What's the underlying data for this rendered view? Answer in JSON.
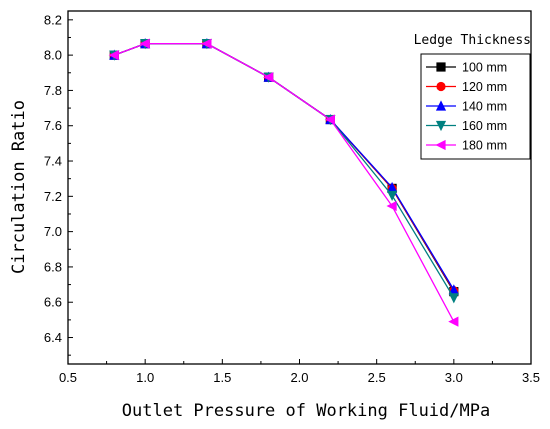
{
  "chart_data": {
    "type": "line",
    "xlabel": "Outlet Pressure of Working Fluid/MPa",
    "ylabel": "Circulation Ratio",
    "xlim": [
      0.5,
      3.5
    ],
    "ylim": [
      6.25,
      8.25
    ],
    "x_ticks": [
      "0.5",
      "1.0",
      "1.5",
      "2.0",
      "2.5",
      "3.0",
      "3.5"
    ],
    "y_ticks": [
      "6.4",
      "6.6",
      "6.8",
      "7.0",
      "7.2",
      "7.4",
      "7.6",
      "7.8",
      "8.0",
      "8.2"
    ],
    "legend_title": "Ledge Thickness",
    "legend_position": "top-right",
    "grid": false,
    "x": [
      0.8,
      1.0,
      1.4,
      1.8,
      2.2,
      2.6,
      3.0
    ],
    "series": [
      {
        "name": "100 mm",
        "color": "#000000",
        "marker": "square",
        "values": [
          8.0,
          8.065,
          8.065,
          7.875,
          7.635,
          7.245,
          6.66
        ]
      },
      {
        "name": "120 mm",
        "color": "#ff0000",
        "marker": "circle",
        "values": [
          8.0,
          8.065,
          8.065,
          7.875,
          7.635,
          7.245,
          6.665
        ]
      },
      {
        "name": "140 mm",
        "color": "#0000ff",
        "marker": "triangle-up",
        "values": [
          8.0,
          8.065,
          8.065,
          7.875,
          7.635,
          7.25,
          6.67
        ]
      },
      {
        "name": "160 mm",
        "color": "#008080",
        "marker": "triangle-down",
        "values": [
          8.0,
          8.065,
          8.065,
          7.875,
          7.635,
          7.205,
          6.625
        ]
      },
      {
        "name": "180 mm",
        "color": "#ff00ff",
        "marker": "triangle-left",
        "values": [
          8.0,
          8.065,
          8.065,
          7.875,
          7.635,
          7.145,
          6.49
        ]
      }
    ]
  }
}
